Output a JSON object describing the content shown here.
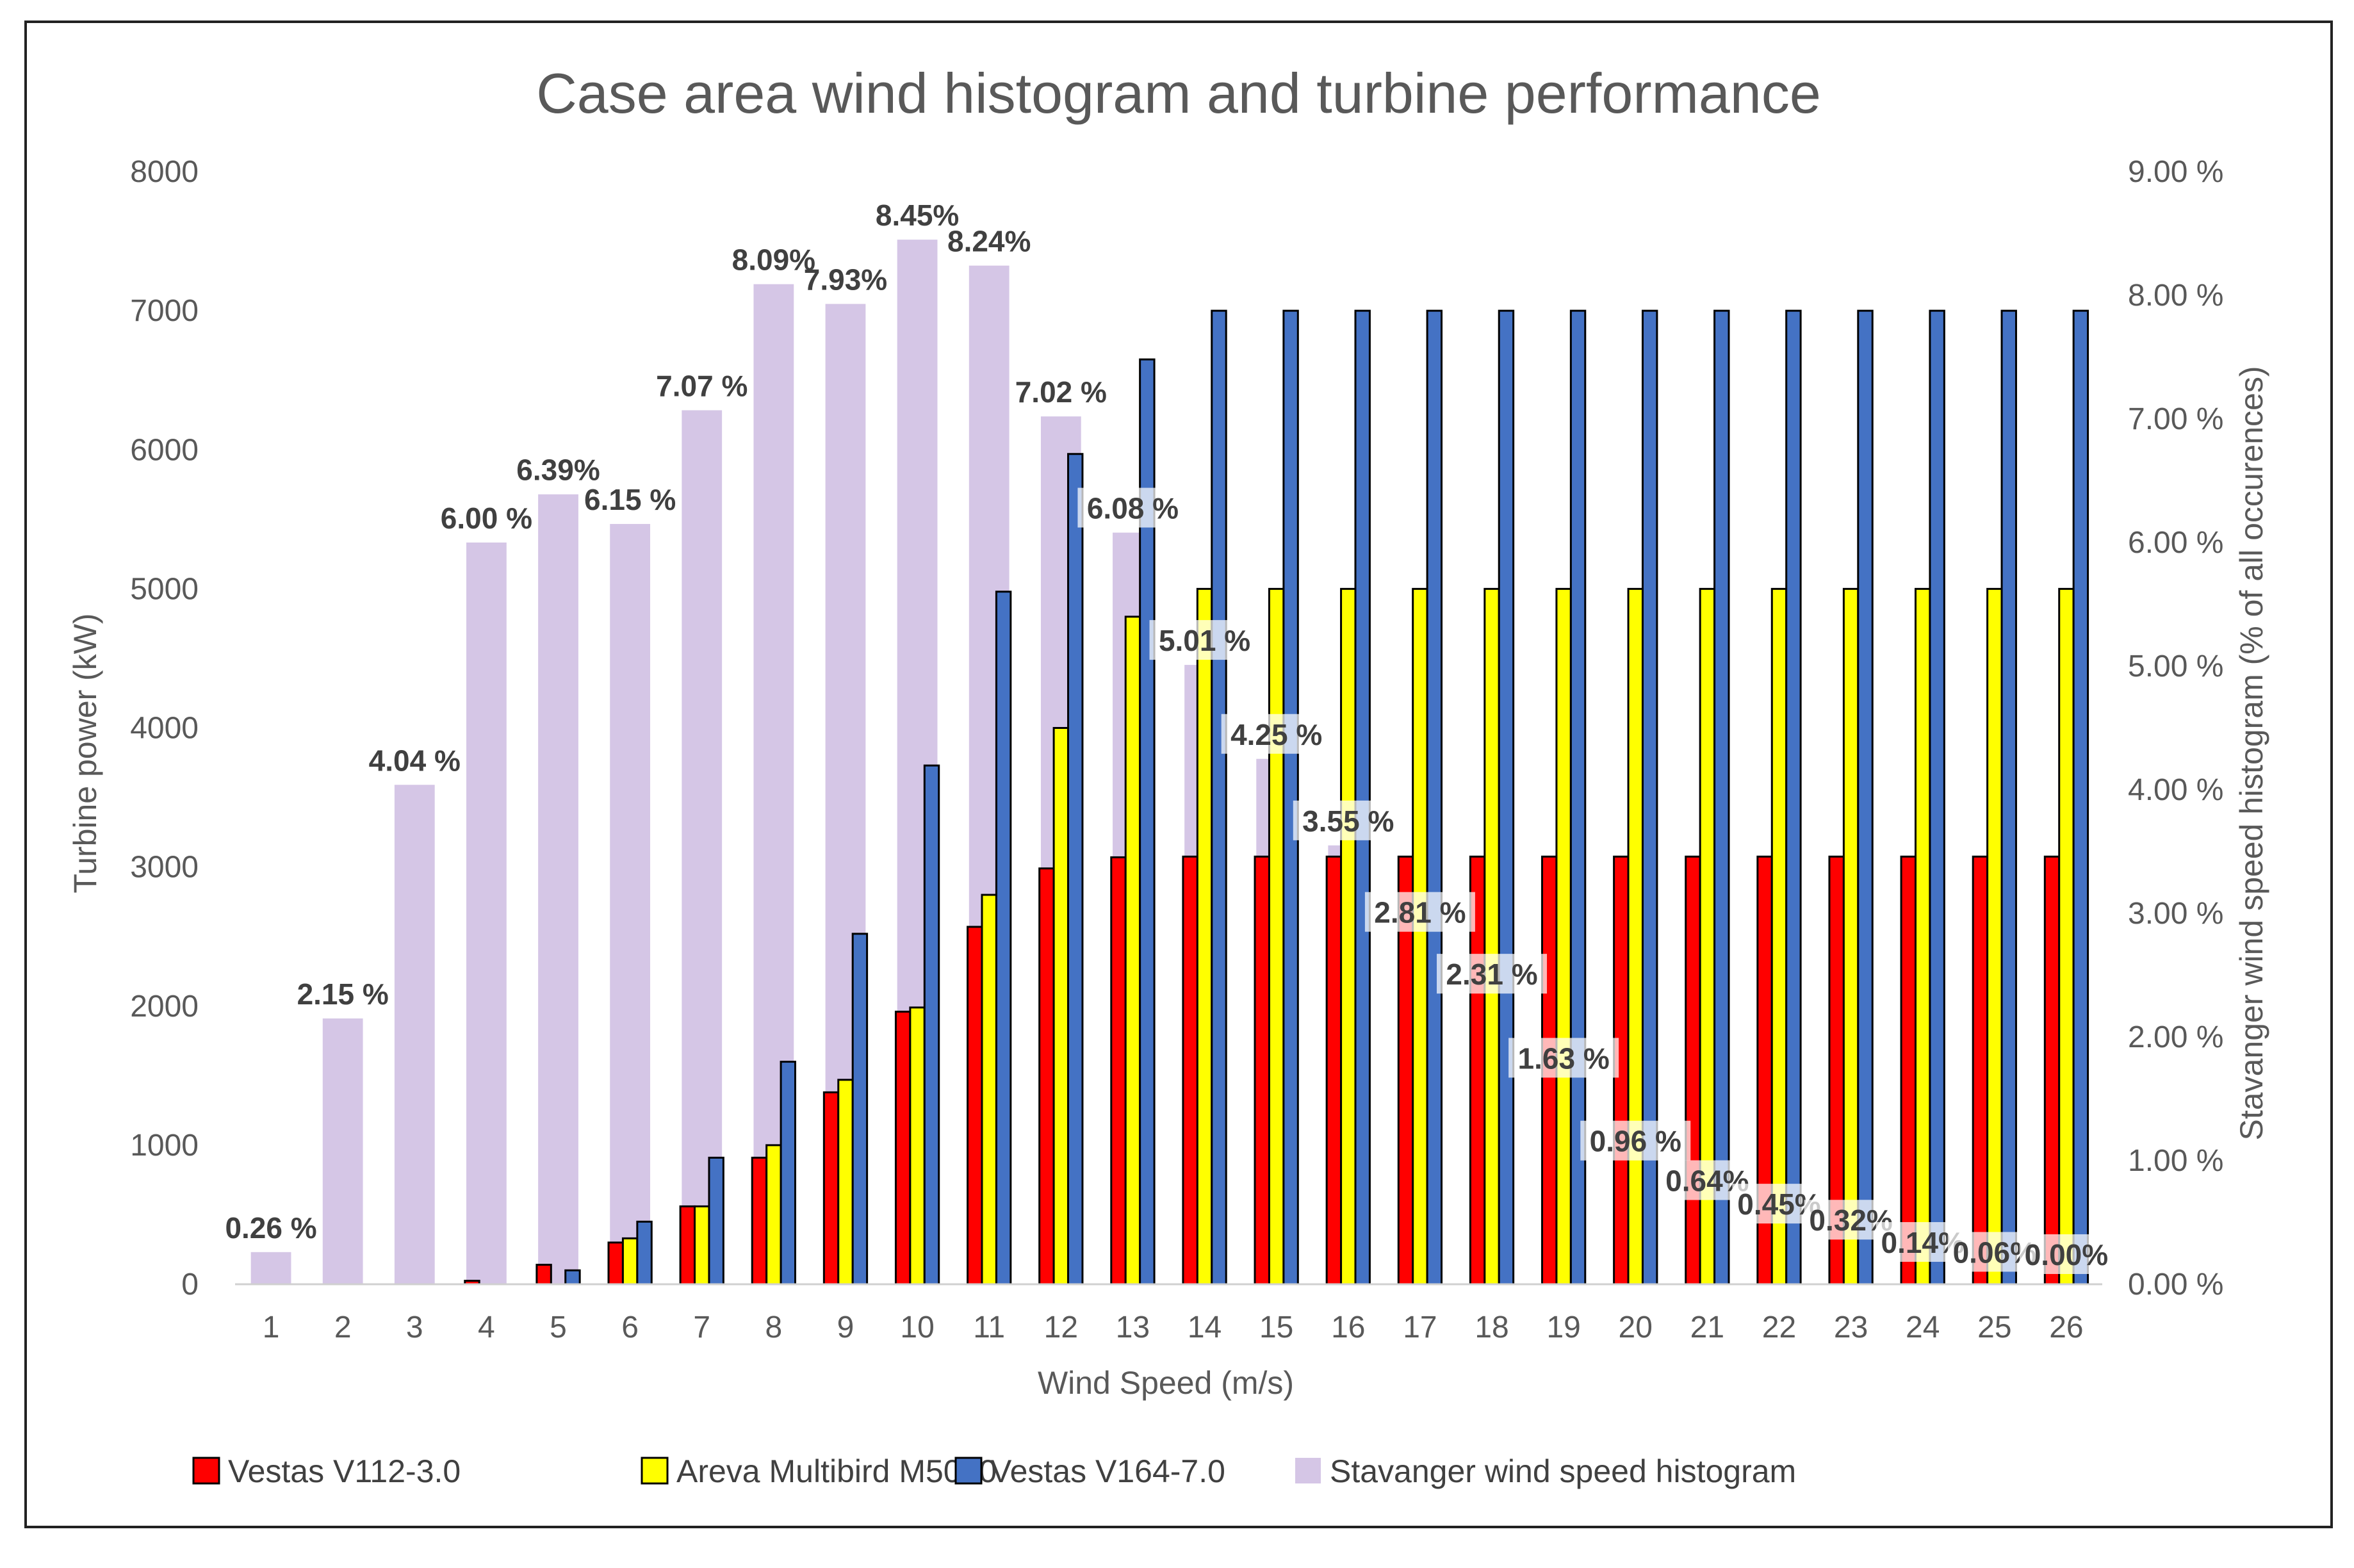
{
  "chart_data": {
    "type": "bar",
    "title": "Case area wind histogram and turbine performance",
    "xlabel": "Wind Speed (m/s)",
    "ylabel": "Turbine power (kW)",
    "y2label": "Stavanger wind speed histogram (% of all occurences)",
    "categories": [
      "1",
      "2",
      "3",
      "4",
      "5",
      "6",
      "7",
      "8",
      "9",
      "10",
      "11",
      "12",
      "13",
      "14",
      "15",
      "16",
      "17",
      "18",
      "19",
      "20",
      "21",
      "22",
      "23",
      "24",
      "25",
      "26"
    ],
    "ylim": [
      0,
      8000
    ],
    "yticks": [
      "0",
      "1000",
      "2000",
      "3000",
      "4000",
      "5000",
      "6000",
      "7000",
      "8000"
    ],
    "y2lim": [
      0,
      9
    ],
    "y2ticks": [
      "0.00 %",
      "1.00 %",
      "2.00 %",
      "3.00 %",
      "4.00 %",
      "5.00 %",
      "6.00 %",
      "7.00 %",
      "8.00 %",
      "9.00 %"
    ],
    "legend_position": "bottom",
    "histogram": {
      "name": "Stavanger wind speed histogram",
      "color": "#d5c6e6",
      "values": [
        0.26,
        2.15,
        4.04,
        6.0,
        6.39,
        6.15,
        7.07,
        8.09,
        7.93,
        8.45,
        8.24,
        7.02,
        6.08,
        5.01,
        4.25,
        3.55,
        2.81,
        2.31,
        1.63,
        0.96,
        0.64,
        0.45,
        0.32,
        0.14,
        0.06,
        0.0
      ],
      "labels": [
        "0.26 %",
        "2.15 %",
        "4.04 %",
        "6.00 %",
        "6.39%",
        "6.15 %",
        "7.07 %",
        "8.09%",
        "7.93%",
        "8.45%",
        "8.24%",
        "7.02 %",
        "6.08 %",
        "5.01 %",
        "4.25 %",
        "3.55 %",
        "2.81 %",
        "2.31 %",
        "1.63 %",
        "0.96 %",
        "0.64%",
        "0.45%",
        "0.32%",
        "0.14%",
        "0.06%",
        "0.00%"
      ]
    },
    "series": [
      {
        "name": "Vestas V112-3.0",
        "color": "#ff0000",
        "values": [
          0,
          0,
          0,
          25,
          140,
          300,
          560,
          910,
          1380,
          1960,
          2570,
          2990,
          3070,
          3075,
          3075,
          3075,
          3075,
          3075,
          3075,
          3075,
          3075,
          3075,
          3075,
          3075,
          3075,
          3075
        ]
      },
      {
        "name": "Areva Multibird M5000",
        "color": "#ffff00",
        "values": [
          0,
          0,
          0,
          0,
          0,
          330,
          560,
          1000,
          1470,
          1990,
          2800,
          4000,
          4800,
          5000,
          5000,
          5000,
          5000,
          5000,
          5000,
          5000,
          5000,
          5000,
          5000,
          5000,
          5000,
          5000
        ]
      },
      {
        "name": "Vestas V164-7.0",
        "color": "#4472c4",
        "values": [
          0,
          0,
          0,
          0,
          100,
          450,
          910,
          1600,
          2520,
          3730,
          4980,
          5970,
          6650,
          7000,
          7000,
          7000,
          7000,
          7000,
          7000,
          7000,
          7000,
          7000,
          7000,
          7000,
          7000,
          7000
        ]
      }
    ]
  }
}
